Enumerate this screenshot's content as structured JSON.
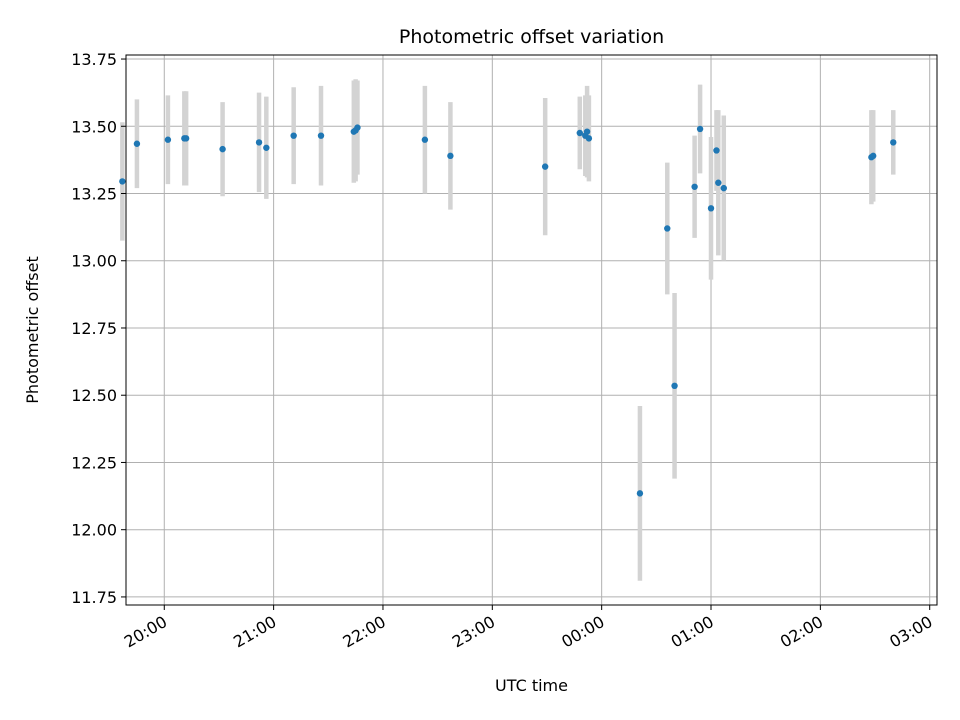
{
  "chart_data": {
    "type": "scatter",
    "title": "Photometric offset variation",
    "xlabel": "UTC time",
    "ylabel": "Photometric offset",
    "x_unit": "UTC time (HH:MM), night spanning midnight",
    "xlim": [
      "19:39",
      "03:04"
    ],
    "ylim": [
      11.72,
      13.765
    ],
    "x_tick_labels": [
      "20:00",
      "21:00",
      "22:00",
      "23:00",
      "00:00",
      "01:00",
      "02:00",
      "03:00"
    ],
    "y_tick_labels": [
      "11.75",
      "12.00",
      "12.25",
      "12.50",
      "12.75",
      "13.00",
      "13.25",
      "13.50",
      "13.75"
    ],
    "grid": true,
    "point_color": "#1f77b4",
    "errorbar_color": "#d3d3d3",
    "series": [
      {
        "points": [
          {
            "x": "19:37",
            "y": 13.295,
            "err": 0.22
          },
          {
            "x": "19:45",
            "y": 13.435,
            "err": 0.165
          },
          {
            "x": "20:02",
            "y": 13.45,
            "err": 0.165
          },
          {
            "x": "20:11",
            "y": 13.455,
            "err": 0.175
          },
          {
            "x": "20:12",
            "y": 13.455,
            "err": 0.175
          },
          {
            "x": "20:32",
            "y": 13.415,
            "err": 0.175
          },
          {
            "x": "20:52",
            "y": 13.44,
            "err": 0.185
          },
          {
            "x": "20:56",
            "y": 13.42,
            "err": 0.19
          },
          {
            "x": "21:11",
            "y": 13.465,
            "err": 0.18
          },
          {
            "x": "21:26",
            "y": 13.465,
            "err": 0.185
          },
          {
            "x": "21:44",
            "y": 13.48,
            "err": 0.19
          },
          {
            "x": "21:45",
            "y": 13.485,
            "err": 0.19
          },
          {
            "x": "21:46",
            "y": 13.495,
            "err": 0.175
          },
          {
            "x": "22:23",
            "y": 13.45,
            "err": 0.2
          },
          {
            "x": "22:37",
            "y": 13.39,
            "err": 0.2
          },
          {
            "x": "23:29",
            "y": 13.35,
            "err": 0.255
          },
          {
            "x": "23:48",
            "y": 13.475,
            "err": 0.135
          },
          {
            "x": "23:51",
            "y": 13.465,
            "err": 0.15
          },
          {
            "x": "23:52",
            "y": 13.48,
            "err": 0.17
          },
          {
            "x": "23:53",
            "y": 13.455,
            "err": 0.16
          },
          {
            "x": "00:21",
            "y": 12.135,
            "err": 0.325
          },
          {
            "x": "00:36",
            "y": 13.12,
            "err": 0.245
          },
          {
            "x": "00:40",
            "y": 12.535,
            "err": 0.345
          },
          {
            "x": "00:51",
            "y": 13.275,
            "err": 0.19
          },
          {
            "x": "00:54",
            "y": 13.49,
            "err": 0.165
          },
          {
            "x": "01:00",
            "y": 13.195,
            "err": 0.265
          },
          {
            "x": "01:03",
            "y": 13.41,
            "err": 0.15
          },
          {
            "x": "01:04",
            "y": 13.29,
            "err": 0.27
          },
          {
            "x": "01:07",
            "y": 13.27,
            "err": 0.27
          },
          {
            "x": "02:28",
            "y": 13.385,
            "err": 0.175
          },
          {
            "x": "02:29",
            "y": 13.39,
            "err": 0.17
          },
          {
            "x": "02:40",
            "y": 13.44,
            "err": 0.12
          }
        ]
      }
    ]
  }
}
